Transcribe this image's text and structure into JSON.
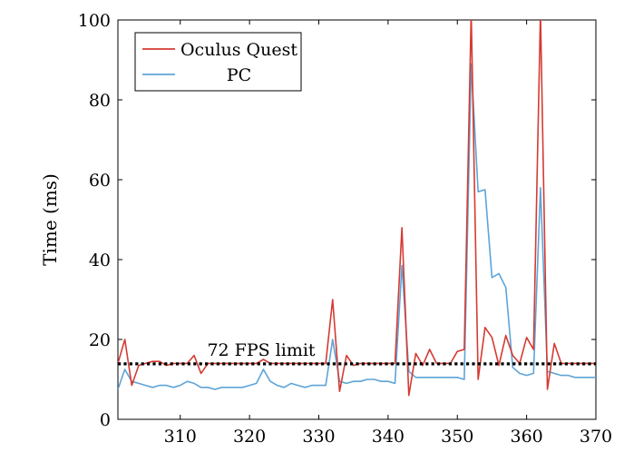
{
  "chart_data": {
    "type": "line",
    "title": "",
    "xlabel": "",
    "ylabel": "Time (ms)",
    "xlim": [
      301,
      370
    ],
    "ylim": [
      0,
      100
    ],
    "xticks": [
      310,
      320,
      330,
      340,
      350,
      360,
      370
    ],
    "yticks": [
      0,
      20,
      40,
      60,
      80,
      100
    ],
    "grid": false,
    "legend_position": "top-left",
    "reference_line": {
      "label": "72 FPS limit",
      "y": 13.9,
      "style": "dotted",
      "color": "#000000"
    },
    "x": [
      301,
      302,
      303,
      304,
      305,
      306,
      307,
      308,
      309,
      310,
      311,
      312,
      313,
      314,
      315,
      316,
      317,
      318,
      319,
      320,
      321,
      322,
      323,
      324,
      325,
      326,
      327,
      328,
      329,
      330,
      331,
      332,
      333,
      334,
      335,
      336,
      337,
      338,
      339,
      340,
      341,
      342,
      343,
      344,
      345,
      346,
      347,
      348,
      349,
      350,
      351,
      352,
      353,
      354,
      355,
      356,
      357,
      358,
      359,
      360,
      361,
      362,
      363,
      364,
      365,
      366,
      367,
      368,
      369,
      370
    ],
    "series": [
      {
        "name": "Oculus Quest",
        "color": "#d43b33",
        "values": [
          14,
          20,
          8.5,
          13.5,
          14,
          14.5,
          14.5,
          13.5,
          14,
          14,
          14,
          16,
          11.5,
          14,
          14,
          14,
          14,
          14,
          14,
          14,
          14,
          15,
          14,
          14,
          14,
          14,
          14,
          14,
          14,
          14,
          14,
          30,
          7,
          16,
          13.5,
          14,
          14,
          14,
          14,
          14,
          14,
          48,
          6,
          16.5,
          13.5,
          17.5,
          14,
          14,
          14,
          17,
          17.5,
          102,
          10,
          23,
          20.5,
          13.5,
          21,
          16,
          14,
          20.5,
          17.5,
          102,
          7.5,
          19,
          14,
          14,
          14,
          14,
          14,
          14
        ]
      },
      {
        "name": "PC",
        "color": "#5ea4d8",
        "values": [
          7.5,
          12.5,
          9.5,
          9,
          8.5,
          8,
          8.5,
          8.5,
          8,
          8.5,
          9.5,
          9,
          8,
          8,
          7.5,
          8,
          8,
          8,
          8,
          8.5,
          9,
          12.5,
          9.5,
          8.5,
          8,
          9,
          8.5,
          8,
          8.5,
          8.5,
          8.5,
          20,
          9.5,
          9,
          9.5,
          9.5,
          10,
          10,
          9.5,
          9.5,
          9,
          38.5,
          12,
          10.5,
          10.5,
          10.5,
          10.5,
          10.5,
          10.5,
          10.5,
          10,
          89,
          57,
          57.5,
          35.5,
          36.5,
          33,
          13,
          11.5,
          11,
          11.5,
          58,
          12,
          11.5,
          11,
          11,
          10.5,
          10.5,
          10.5,
          10.5
        ]
      }
    ]
  }
}
